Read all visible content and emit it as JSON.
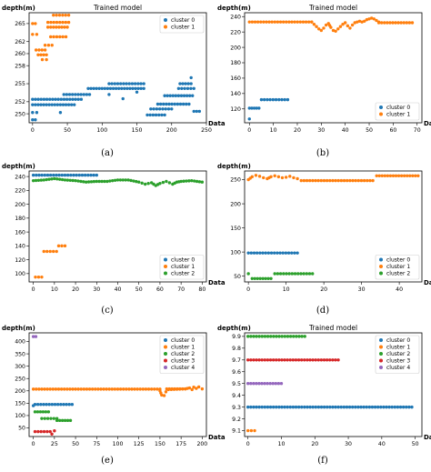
{
  "colors": {
    "cluster_0": "#1f77b4",
    "cluster_1": "#ff7f0e",
    "cluster_2": "#2ca02c",
    "cluster_3": "#d62728",
    "cluster_4": "#9467bd"
  },
  "chart_data": [
    {
      "id": "a",
      "type": "scatter",
      "caption": "(a)",
      "title": "Trained model",
      "ylabel": "depth(m)",
      "xlabel": "Data",
      "xlim": [
        -5,
        250
      ],
      "ylim": [
        248.5,
        266.8
      ],
      "xticks": [
        "0",
        "50",
        "100",
        "150",
        "200",
        "250"
      ],
      "xtick_values": [
        0,
        50,
        100,
        150,
        200,
        250
      ],
      "yticks": [
        "250",
        "252",
        "255",
        "258",
        "260",
        "262",
        "265"
      ],
      "ytick_values": [
        250,
        252,
        255,
        258,
        260,
        262,
        265
      ],
      "legend": "upper-right",
      "series": [
        {
          "name": "cluster 0",
          "color_key": "cluster_0",
          "segments": [
            {
              "x0": 0,
              "x1": 4,
              "y": 249.0
            },
            {
              "x0": 0,
              "x1": 6,
              "y": 250.2
            },
            {
              "x0": 0,
              "x1": 60,
              "y": 251.5
            },
            {
              "x0": 0,
              "x1": 70,
              "y": 252.4
            },
            {
              "x0": 45,
              "x1": 82,
              "y": 253.2
            },
            {
              "x0": 80,
              "x1": 160,
              "y": 254.2
            },
            {
              "x0": 110,
              "x1": 160,
              "y": 255.0
            },
            {
              "x0": 165,
              "x1": 190,
              "y": 249.8
            },
            {
              "x0": 170,
              "x1": 200,
              "y": 250.8
            },
            {
              "x0": 180,
              "x1": 225,
              "y": 251.6
            },
            {
              "x0": 190,
              "x1": 230,
              "y": 253.0
            },
            {
              "x0": 210,
              "x1": 232,
              "y": 254.2
            },
            {
              "x0": 212,
              "x1": 228,
              "y": 255.0
            },
            {
              "x0": 232,
              "x1": 240,
              "y": 250.4
            }
          ],
          "points": [
            {
              "x": 228,
              "y": 256.0
            },
            {
              "x": 40,
              "y": 250.2
            },
            {
              "x": 110,
              "y": 253.2
            },
            {
              "x": 130,
              "y": 252.5
            },
            {
              "x": 150,
              "y": 253.6
            }
          ]
        },
        {
          "name": "cluster 1",
          "color_key": "cluster_1",
          "segments": [
            {
              "x0": 0,
              "x1": 6,
              "y": 263.2
            },
            {
              "x0": 0,
              "x1": 4,
              "y": 265.0
            },
            {
              "x0": 5,
              "x1": 18,
              "y": 260.6
            },
            {
              "x0": 8,
              "x1": 20,
              "y": 259.8
            },
            {
              "x0": 14,
              "x1": 20,
              "y": 259.0
            },
            {
              "x0": 18,
              "x1": 28,
              "y": 261.4
            },
            {
              "x0": 22,
              "x1": 50,
              "y": 264.4
            },
            {
              "x0": 22,
              "x1": 52,
              "y": 265.2
            },
            {
              "x0": 30,
              "x1": 52,
              "y": 266.4
            },
            {
              "x0": 26,
              "x1": 48,
              "y": 262.8
            }
          ],
          "points": []
        }
      ]
    },
    {
      "id": "b",
      "type": "scatter",
      "caption": "(b)",
      "title": "Trained model",
      "ylabel": "depth(m)",
      "xlabel": "Data",
      "xlim": [
        -2,
        72
      ],
      "ylim": [
        102,
        245
      ],
      "xticks": [
        "0",
        "10",
        "20",
        "30",
        "40",
        "50",
        "60",
        "70"
      ],
      "xtick_values": [
        0,
        10,
        20,
        30,
        40,
        50,
        60,
        70
      ],
      "yticks": [
        "120",
        "140",
        "160",
        "180",
        "200",
        "220",
        "240"
      ],
      "ytick_values": [
        120,
        140,
        160,
        180,
        200,
        220,
        240
      ],
      "legend": "lower-right",
      "series": [
        {
          "name": "cluster 0",
          "color_key": "cluster_0",
          "segments": [
            {
              "x0": 1,
              "x1": 4,
              "y": 121
            },
            {
              "x0": 5,
              "x1": 16,
              "y": 132
            }
          ],
          "points": [
            {
              "x": 0,
              "y": 107
            },
            {
              "x": 0,
              "y": 121
            }
          ]
        },
        {
          "name": "cluster 1",
          "color_key": "cluster_1",
          "segments": [
            {
              "x0": 0,
              "x1": 26,
              "y": 233
            },
            {
              "x0": 54,
              "x1": 68,
              "y": 232
            }
          ],
          "curve": [
            [
              26,
              233
            ],
            [
              27,
              230
            ],
            [
              28,
              227
            ],
            [
              29,
              224
            ],
            [
              30,
              222
            ],
            [
              31,
              225
            ],
            [
              32,
              229
            ],
            [
              33,
              231
            ],
            [
              34,
              226
            ],
            [
              35,
              222
            ],
            [
              36,
              221
            ],
            [
              37,
              224
            ],
            [
              38,
              227
            ],
            [
              39,
              230
            ],
            [
              40,
              232
            ],
            [
              41,
              228
            ],
            [
              42,
              225
            ],
            [
              43,
              229
            ],
            [
              44,
              232
            ],
            [
              45,
              233
            ],
            [
              46,
              234
            ],
            [
              47,
              233
            ],
            [
              48,
              234
            ],
            [
              49,
              236
            ],
            [
              50,
              237
            ],
            [
              51,
              238
            ],
            [
              52,
              237
            ],
            [
              53,
              235
            ],
            [
              54,
              233
            ]
          ],
          "points": []
        }
      ]
    },
    {
      "id": "c",
      "type": "scatter",
      "caption": "(c)",
      "title": "",
      "ylabel": "depth(m)",
      "xlabel": "Data",
      "xlim": [
        -2,
        82
      ],
      "ylim": [
        88,
        248
      ],
      "xticks": [
        "0",
        "10",
        "20",
        "30",
        "40",
        "50",
        "60",
        "70",
        "80"
      ],
      "xtick_values": [
        0,
        10,
        20,
        30,
        40,
        50,
        60,
        70,
        80
      ],
      "yticks": [
        "100",
        "120",
        "140",
        "160",
        "180",
        "200",
        "220",
        "240"
      ],
      "ytick_values": [
        100,
        120,
        140,
        160,
        180,
        200,
        220,
        240
      ],
      "legend": "lower-right",
      "series": [
        {
          "name": "cluster 0",
          "color_key": "cluster_0",
          "segments": [
            {
              "x0": 0,
              "x1": 30,
              "y": 242
            }
          ],
          "points": []
        },
        {
          "name": "cluster 1",
          "color_key": "cluster_1",
          "segments": [
            {
              "x0": 1,
              "x1": 4,
              "y": 95
            },
            {
              "x0": 5,
              "x1": 11,
              "y": 132
            },
            {
              "x0": 12,
              "x1": 15,
              "y": 140
            }
          ],
          "points": []
        },
        {
          "name": "cluster 2",
          "color_key": "cluster_2",
          "segments": [],
          "curve": [
            [
              0,
              234
            ],
            [
              5,
              235
            ],
            [
              10,
              237
            ],
            [
              15,
              235
            ],
            [
              20,
              234
            ],
            [
              25,
              232
            ],
            [
              30,
              233
            ],
            [
              35,
              233
            ],
            [
              40,
              235
            ],
            [
              45,
              235
            ],
            [
              50,
              232
            ],
            [
              53,
              229
            ],
            [
              56,
              231
            ],
            [
              58,
              227
            ],
            [
              60,
              230
            ],
            [
              63,
              233
            ],
            [
              66,
              229
            ],
            [
              68,
              232
            ],
            [
              70,
              233
            ],
            [
              75,
              234
            ],
            [
              80,
              232
            ]
          ],
          "points": []
        }
      ]
    },
    {
      "id": "d",
      "type": "scatter",
      "caption": "(d)",
      "title": "",
      "ylabel": "depth(m)",
      "xlabel": "Data",
      "xlim": [
        -1,
        46
      ],
      "ylim": [
        38,
        268
      ],
      "xticks": [
        "0",
        "10",
        "20",
        "30",
        "40"
      ],
      "xtick_values": [
        0,
        10,
        20,
        30,
        40
      ],
      "yticks": [
        "50",
        "100",
        "150",
        "200",
        "250"
      ],
      "ytick_values": [
        50,
        100,
        150,
        200,
        250
      ],
      "legend": "lower-right",
      "series": [
        {
          "name": "cluster 0",
          "color_key": "cluster_0",
          "segments": [
            {
              "x0": 0,
              "x1": 13,
              "y": 98
            }
          ],
          "points": []
        },
        {
          "name": "cluster 1",
          "color_key": "cluster_1",
          "segments": [
            {
              "x0": 14,
              "x1": 33,
              "y": 248
            },
            {
              "x0": 34,
              "x1": 45,
              "y": 258
            }
          ],
          "curve": [
            [
              0,
              250
            ],
            [
              1,
              256
            ],
            [
              2,
              259
            ],
            [
              3,
              257
            ],
            [
              4,
              254
            ],
            [
              5,
              252
            ],
            [
              6,
              256
            ],
            [
              7,
              258
            ],
            [
              8,
              256
            ],
            [
              9,
              254
            ],
            [
              10,
              255
            ],
            [
              11,
              257
            ],
            [
              12,
              254
            ],
            [
              13,
              252
            ]
          ],
          "points": []
        },
        {
          "name": "cluster 2",
          "color_key": "cluster_2",
          "segments": [
            {
              "x0": 1,
              "x1": 6,
              "y": 45
            },
            {
              "x0": 7,
              "x1": 17,
              "y": 55
            }
          ],
          "points": [
            {
              "x": 0,
              "y": 55
            }
          ]
        }
      ]
    },
    {
      "id": "e",
      "type": "scatter",
      "caption": "(e)",
      "title": "",
      "ylabel": "depth(m)",
      "xlabel": "Data",
      "xlim": [
        -5,
        205
      ],
      "ylim": [
        15,
        435
      ],
      "xticks": [
        "0",
        "25",
        "50",
        "75",
        "100",
        "125",
        "150",
        "175",
        "200"
      ],
      "xtick_values": [
        0,
        25,
        50,
        75,
        100,
        125,
        150,
        175,
        200
      ],
      "yticks": [
        "50",
        "100",
        "150",
        "200",
        "250",
        "300",
        "350",
        "400"
      ],
      "ytick_values": [
        50,
        100,
        150,
        200,
        250,
        300,
        350,
        400
      ],
      "legend": "upper-right",
      "series": [
        {
          "name": "cluster 0",
          "color_key": "cluster_0",
          "segments": [
            {
              "x0": 2,
              "x1": 46,
              "y": 145
            }
          ],
          "points": [
            {
              "x": 0,
              "y": 140
            }
          ]
        },
        {
          "name": "cluster 1",
          "color_key": "cluster_1",
          "segments": [
            {
              "x0": 0,
              "x1": 150,
              "y": 207
            },
            {
              "x0": 158,
              "x1": 180,
              "y": 208
            }
          ],
          "curve": [
            [
              150,
              200
            ],
            [
              152,
              183
            ],
            [
              155,
              181
            ],
            [
              157,
              196
            ],
            [
              160,
              205
            ],
            [
              180,
              208
            ],
            [
              185,
              212
            ],
            [
              188,
              205
            ],
            [
              190,
              215
            ],
            [
              193,
              210
            ],
            [
              196,
              216
            ],
            [
              200,
              208
            ]
          ],
          "points": []
        },
        {
          "name": "cluster 2",
          "color_key": "cluster_2",
          "segments": [
            {
              "x0": 2,
              "x1": 18,
              "y": 115
            },
            {
              "x0": 10,
              "x1": 28,
              "y": 88
            },
            {
              "x0": 28,
              "x1": 44,
              "y": 80
            }
          ],
          "points": []
        },
        {
          "name": "cluster 3",
          "color_key": "cluster_3",
          "segments": [
            {
              "x0": 2,
              "x1": 20,
              "y": 35
            }
          ],
          "points": [
            {
              "x": 22,
              "y": 25
            },
            {
              "x": 25,
              "y": 38
            }
          ]
        },
        {
          "name": "cluster 4",
          "color_key": "cluster_4",
          "segments": [
            {
              "x0": 0,
              "x1": 3,
              "y": 420
            }
          ],
          "points": []
        }
      ]
    },
    {
      "id": "f",
      "type": "scatter",
      "caption": "(f)",
      "title": "Trained model",
      "ylabel": "depth(m)",
      "xlabel": "Data",
      "xlim": [
        -1,
        52
      ],
      "ylim": [
        9.05,
        9.93
      ],
      "xticks": [
        "0",
        "10",
        "20",
        "30",
        "40",
        "50"
      ],
      "xtick_values": [
        0,
        10,
        20,
        30,
        40,
        50
      ],
      "yticks": [
        "9.1",
        "9.2",
        "9.3",
        "9.4",
        "9.5",
        "9.6",
        "9.7",
        "9.8",
        "9.9"
      ],
      "ytick_values": [
        9.1,
        9.2,
        9.3,
        9.4,
        9.5,
        9.6,
        9.7,
        9.8,
        9.9
      ],
      "legend": "upper-right",
      "series": [
        {
          "name": "cluster 0",
          "color_key": "cluster_0",
          "segments": [
            {
              "x0": 0,
              "x1": 49,
              "y": 9.3
            }
          ],
          "points": []
        },
        {
          "name": "cluster 1",
          "color_key": "cluster_1",
          "segments": [
            {
              "x0": 0,
              "x1": 2,
              "y": 9.1
            }
          ],
          "points": []
        },
        {
          "name": "cluster 2",
          "color_key": "cluster_2",
          "segments": [
            {
              "x0": 0,
              "x1": 17,
              "y": 9.9
            }
          ],
          "points": []
        },
        {
          "name": "cluster 3",
          "color_key": "cluster_3",
          "segments": [
            {
              "x0": 0,
              "x1": 27,
              "y": 9.7
            }
          ],
          "points": []
        },
        {
          "name": "cluster 4",
          "color_key": "cluster_4",
          "segments": [
            {
              "x0": 0,
              "x1": 10,
              "y": 9.5
            }
          ],
          "points": []
        }
      ]
    }
  ]
}
